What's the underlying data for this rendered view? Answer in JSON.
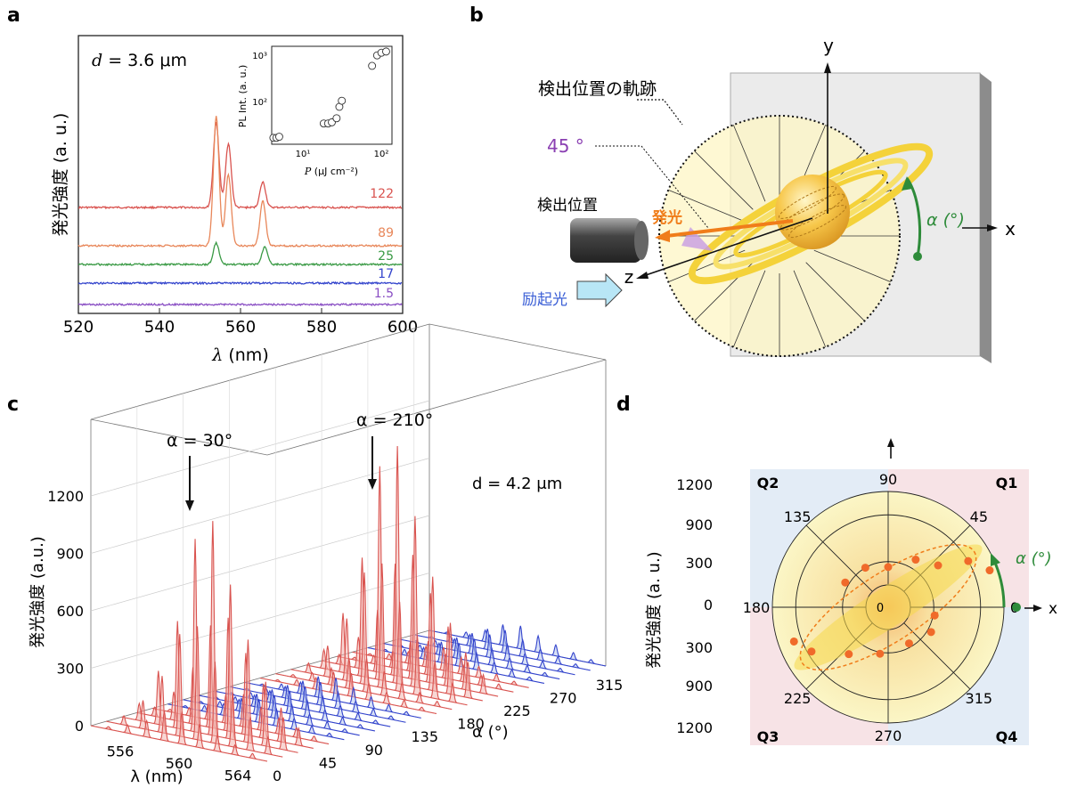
{
  "panels": {
    "a": {
      "label": "a",
      "annotation_sym": "d",
      "annotation_val": " = 3.6 μm",
      "ylabel": "発光強度 (a. u.)",
      "xlabel_sym": "λ",
      "xlabel_unit": " (nm)",
      "xticks": [
        "520",
        "540",
        "560",
        "580",
        "600"
      ],
      "inset": {
        "ylabel": "PL Int. (a. u.)",
        "xlabel_sym": "P",
        "xlabel_unit": " (μJ cm⁻²)",
        "yticks": [
          "10³",
          "10²"
        ],
        "xticks": [
          "10¹",
          "10²"
        ]
      },
      "curve_labels": [
        "122",
        "89",
        "25",
        "17",
        "1.5"
      ]
    },
    "b": {
      "label": "b",
      "trajectory_label": "検出位置の軌跡",
      "angle_label": "45 °",
      "detector_label": "検出位置",
      "emission_label": "発光",
      "excitation_label": "励起光",
      "axis_x": "x",
      "axis_y": "y",
      "axis_z": "z",
      "alpha_label": "α (°)"
    },
    "c": {
      "label": "c",
      "peak1_label": "α = 30°",
      "peak2_label": "α = 210°",
      "annotation": "d = 4.2 μm",
      "ylabel": "発光強度 (a.u.)",
      "zticks": [
        "1200",
        "900",
        "600",
        "300",
        "0"
      ],
      "lambda_ticks": [
        "556",
        "560",
        "564"
      ],
      "lambda_label": "λ (nm)",
      "alpha_ticks": [
        "0",
        "45",
        "90",
        "135",
        "180",
        "225",
        "270",
        "315"
      ],
      "alpha_label": "α (°)"
    },
    "d": {
      "label": "d",
      "ylabel": "発光強度 (a. u.)",
      "radial_ticks": [
        "1200",
        "900",
        "300",
        "0",
        "300",
        "900",
        "1200"
      ],
      "angle_labels": [
        "90",
        "45",
        "0",
        "315",
        "270",
        "225",
        "180",
        "135"
      ],
      "quadrants": [
        "Q1",
        "Q2",
        "Q3",
        "Q4"
      ],
      "center_label": "0",
      "axis_x": "x",
      "alpha_label": "α (°)"
    }
  },
  "chart_data": [
    {
      "panel": "a",
      "type": "line",
      "xlabel": "λ (nm)",
      "ylabel": "発光強度 (a. u.)",
      "xlim": [
        520,
        600
      ],
      "series": [
        {
          "name": "122",
          "color": "#d9534f",
          "peaks": [
            [
              554,
              1.0
            ],
            [
              557,
              0.75
            ],
            [
              565.5,
              0.3
            ]
          ]
        },
        {
          "name": "89",
          "color": "#e8875a",
          "peaks": [
            [
              554,
              1.0
            ],
            [
              557,
              0.55
            ],
            [
              565.5,
              0.35
            ]
          ]
        },
        {
          "name": "25",
          "color": "#3a9a45",
          "peaks": [
            [
              554,
              0.6
            ],
            [
              566,
              0.5
            ]
          ]
        },
        {
          "name": "17",
          "color": "#3344cc",
          "peaks": []
        },
        {
          "name": "1.5",
          "color": "#8a4fc4",
          "peaks": []
        }
      ]
    },
    {
      "panel": "a-inset",
      "type": "scatter",
      "xlabel": "P (μJ cm⁻²)",
      "ylabel": "PL Int. (a. u.)",
      "xscale": "log",
      "yscale": "log",
      "xlim": [
        1.5,
        150
      ],
      "ylim": [
        15,
        1200
      ],
      "x": [
        1.6,
        1.8,
        2.0,
        11,
        13,
        15,
        18,
        20,
        22,
        70,
        85,
        100,
        120
      ],
      "y": [
        20,
        20,
        21,
        38,
        38,
        40,
        48,
        80,
        105,
        500,
        800,
        900,
        950
      ]
    },
    {
      "panel": "c",
      "type": "area",
      "xlabel": "λ (nm)",
      "ylabel": "発光強度 (a.u.)",
      "lambda_range": [
        554,
        566
      ],
      "alpha_range": [
        0,
        330
      ],
      "zlim": [
        0,
        1200
      ],
      "max_peaks": [
        {
          "alpha": 30,
          "value": 1120
        },
        {
          "alpha": 210,
          "value": 1240
        }
      ]
    },
    {
      "panel": "d",
      "type": "scatter",
      "polar": true,
      "rlim": [
        0,
        1200
      ],
      "points": [
        [
          20,
          1100
        ],
        [
          30,
          900
        ],
        [
          40,
          550
        ],
        [
          60,
          420
        ],
        [
          90,
          230
        ],
        [
          120,
          300
        ],
        [
          150,
          350
        ],
        [
          200,
          1000
        ],
        [
          210,
          850
        ],
        [
          230,
          500
        ],
        [
          260,
          320
        ],
        [
          300,
          250
        ],
        [
          330,
          350
        ],
        [
          350,
          320
        ]
      ]
    }
  ]
}
